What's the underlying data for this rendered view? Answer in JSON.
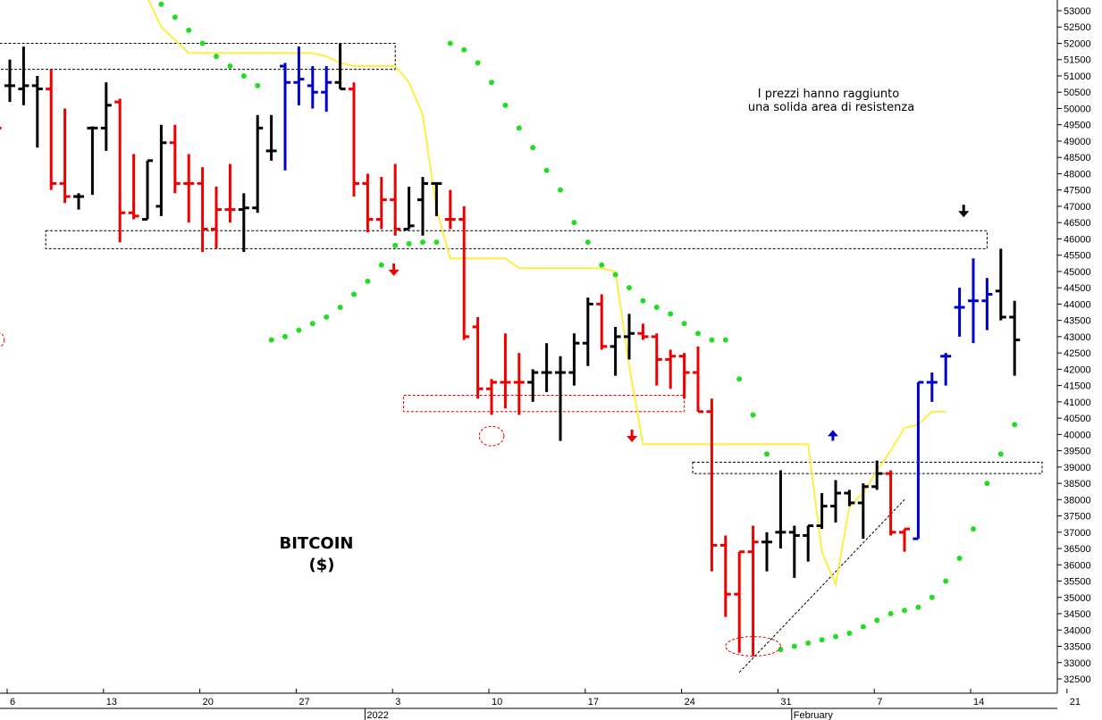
{
  "chart_data": {
    "type": "ohlc",
    "title": "BITCOIN",
    "subtitle": "($)",
    "annotation": "I prezzi hanno raggiunto una solida area di resistenza",
    "annotation_lines": [
      "I prezzi hanno raggiunto",
      "una solida area di resistenza"
    ],
    "ylim": [
      32000,
      53300
    ],
    "y_ticks": [
      32500,
      33000,
      33500,
      34000,
      34500,
      35000,
      35500,
      36000,
      36500,
      37000,
      37500,
      38000,
      38500,
      39000,
      39500,
      40000,
      40500,
      41000,
      41500,
      42000,
      42500,
      43000,
      43500,
      44000,
      44500,
      45000,
      45500,
      46000,
      46500,
      47000,
      47500,
      48000,
      48500,
      49000,
      49500,
      50000,
      50500,
      51000,
      51500,
      52000,
      52500,
      53000
    ],
    "x_day_ticks": [
      {
        "label": "6",
        "day": 0
      },
      {
        "label": "13",
        "day": 7
      },
      {
        "label": "20",
        "day": 14
      },
      {
        "label": "27",
        "day": 21
      },
      {
        "label": "3",
        "day": 28
      },
      {
        "label": "10",
        "day": 35
      },
      {
        "label": "17",
        "day": 42
      },
      {
        "label": "24",
        "day": 49
      },
      {
        "label": "31",
        "day": 56
      },
      {
        "label": "7",
        "day": 63
      },
      {
        "label": "14",
        "day": 70
      },
      {
        "label": "21",
        "day": 77
      }
    ],
    "month_labels": [
      {
        "label": "2022",
        "day": 26
      },
      {
        "label": "February",
        "day": 57
      }
    ],
    "grid": false,
    "colors": {
      "up_black": "#000000",
      "down_red": "#ee0000",
      "trend_blue": "#0000cc",
      "sar_green": "#22dd22",
      "stop_yellow": "#ffee44",
      "zone_black": "#000000",
      "zone_red": "#ee0000"
    },
    "bars": [
      {
        "day": -1,
        "o": 49400,
        "h": 51000,
        "l": 47300,
        "c": 49400,
        "color": "red"
      },
      {
        "day": 0,
        "o": 50700,
        "h": 51500,
        "l": 50200,
        "c": 50700,
        "color": "black"
      },
      {
        "day": 1,
        "o": 50600,
        "h": 51900,
        "l": 50100,
        "c": 50700,
        "color": "black"
      },
      {
        "day": 2,
        "o": 50700,
        "h": 51000,
        "l": 48800,
        "c": 50600,
        "color": "black"
      },
      {
        "day": 3,
        "o": 50600,
        "h": 51200,
        "l": 47500,
        "c": 47700,
        "color": "red"
      },
      {
        "day": 4,
        "o": 47700,
        "h": 50000,
        "l": 47100,
        "c": 47300,
        "color": "red"
      },
      {
        "day": 5,
        "o": 47300,
        "h": 47400,
        "l": 46900,
        "c": 47300,
        "color": "black"
      },
      {
        "day": 6,
        "o": 49400,
        "h": 49450,
        "l": 47350,
        "c": 49400,
        "color": "black"
      },
      {
        "day": 7,
        "o": 49400,
        "h": 50800,
        "l": 48700,
        "c": 50100,
        "color": "black"
      },
      {
        "day": 8,
        "o": 50200,
        "h": 50300,
        "l": 45900,
        "c": 46800,
        "color": "red"
      },
      {
        "day": 9,
        "o": 46800,
        "h": 48600,
        "l": 46600,
        "c": 46700,
        "color": "red"
      },
      {
        "day": 10,
        "o": 46600,
        "h": 48400,
        "l": 46600,
        "c": 48400,
        "color": "black"
      },
      {
        "day": 11,
        "o": 47000,
        "h": 49500,
        "l": 46700,
        "c": 48950,
        "color": "black"
      },
      {
        "day": 12,
        "o": 48950,
        "h": 49500,
        "l": 47400,
        "c": 47700,
        "color": "red"
      },
      {
        "day": 13,
        "o": 47700,
        "h": 48600,
        "l": 46500,
        "c": 47700,
        "color": "red"
      },
      {
        "day": 14,
        "o": 47700,
        "h": 48200,
        "l": 45600,
        "c": 46300,
        "color": "red"
      },
      {
        "day": 15,
        "o": 46300,
        "h": 47600,
        "l": 45700,
        "c": 46900,
        "color": "red"
      },
      {
        "day": 16,
        "o": 46900,
        "h": 48300,
        "l": 46500,
        "c": 46900,
        "color": "red"
      },
      {
        "day": 17,
        "o": 46900,
        "h": 47400,
        "l": 45600,
        "c": 46950,
        "color": "black"
      },
      {
        "day": 18,
        "o": 46950,
        "h": 49800,
        "l": 46800,
        "c": 49400,
        "color": "black"
      },
      {
        "day": 19,
        "o": 48700,
        "h": 49800,
        "l": 48400,
        "c": 48700,
        "color": "black"
      },
      {
        "day": 20,
        "o": 51300,
        "h": 51400,
        "l": 48100,
        "c": 50800,
        "color": "blue"
      },
      {
        "day": 21,
        "o": 50800,
        "h": 51900,
        "l": 50100,
        "c": 50900,
        "color": "blue"
      },
      {
        "day": 22,
        "o": 50700,
        "h": 51300,
        "l": 50000,
        "c": 50500,
        "color": "blue"
      },
      {
        "day": 23,
        "o": 50500,
        "h": 51300,
        "l": 49900,
        "c": 50800,
        "color": "blue"
      },
      {
        "day": 24,
        "o": 50800,
        "h": 52000,
        "l": 50600,
        "c": 50600,
        "color": "black"
      },
      {
        "day": 25,
        "o": 50600,
        "h": 50800,
        "l": 47300,
        "c": 47700,
        "color": "red"
      },
      {
        "day": 26,
        "o": 47700,
        "h": 48000,
        "l": 46200,
        "c": 46600,
        "color": "red"
      },
      {
        "day": 27,
        "o": 46600,
        "h": 47900,
        "l": 46300,
        "c": 47200,
        "color": "red"
      },
      {
        "day": 28,
        "o": 47200,
        "h": 48300,
        "l": 46100,
        "c": 46300,
        "color": "red"
      },
      {
        "day": 29,
        "o": 46300,
        "h": 47600,
        "l": 46300,
        "c": 46400,
        "color": "black"
      },
      {
        "day": 30,
        "o": 47200,
        "h": 47900,
        "l": 46100,
        "c": 47700,
        "color": "black"
      },
      {
        "day": 31,
        "o": 47700,
        "h": 47700,
        "l": 46700,
        "c": 47700,
        "color": "black"
      },
      {
        "day": 32,
        "o": 46600,
        "h": 47500,
        "l": 46300,
        "c": 46600,
        "color": "red"
      },
      {
        "day": 33,
        "o": 46600,
        "h": 47000,
        "l": 42900,
        "c": 43000,
        "color": "red"
      },
      {
        "day": 34,
        "o": 43300,
        "h": 43600,
        "l": 41100,
        "c": 41400,
        "color": "red"
      },
      {
        "day": 35,
        "o": 41400,
        "h": 41700,
        "l": 40600,
        "c": 41600,
        "color": "red"
      },
      {
        "day": 36,
        "o": 41600,
        "h": 43100,
        "l": 40800,
        "c": 41600,
        "color": "red"
      },
      {
        "day": 37,
        "o": 41600,
        "h": 42500,
        "l": 40600,
        "c": 41600,
        "color": "red"
      },
      {
        "day": 38,
        "o": 41600,
        "h": 42000,
        "l": 41000,
        "c": 41900,
        "color": "black"
      },
      {
        "day": 39,
        "o": 41900,
        "h": 42800,
        "l": 41300,
        "c": 41900,
        "color": "black"
      },
      {
        "day": 40,
        "o": 41900,
        "h": 42400,
        "l": 39800,
        "c": 41900,
        "color": "black"
      },
      {
        "day": 41,
        "o": 41900,
        "h": 43100,
        "l": 41500,
        "c": 42800,
        "color": "black"
      },
      {
        "day": 42,
        "o": 42800,
        "h": 44200,
        "l": 42100,
        "c": 44000,
        "color": "black"
      },
      {
        "day": 43,
        "o": 44000,
        "h": 44300,
        "l": 42600,
        "c": 42700,
        "color": "red"
      },
      {
        "day": 44,
        "o": 42700,
        "h": 43300,
        "l": 41800,
        "c": 43000,
        "color": "black"
      },
      {
        "day": 45,
        "o": 43000,
        "h": 43700,
        "l": 42300,
        "c": 43100,
        "color": "black"
      },
      {
        "day": 46,
        "o": 43100,
        "h": 43400,
        "l": 42900,
        "c": 43000,
        "color": "red"
      },
      {
        "day": 47,
        "o": 43000,
        "h": 43100,
        "l": 41500,
        "c": 42300,
        "color": "red"
      },
      {
        "day": 48,
        "o": 42300,
        "h": 42600,
        "l": 41400,
        "c": 42400,
        "color": "red"
      },
      {
        "day": 49,
        "o": 42400,
        "h": 42500,
        "l": 41100,
        "c": 41900,
        "color": "red"
      },
      {
        "day": 50,
        "o": 41900,
        "h": 42700,
        "l": 40700,
        "c": 40700,
        "color": "red"
      },
      {
        "day": 51,
        "o": 40700,
        "h": 41100,
        "l": 35800,
        "c": 36600,
        "color": "red"
      },
      {
        "day": 52,
        "o": 36600,
        "h": 36900,
        "l": 34400,
        "c": 35100,
        "color": "red"
      },
      {
        "day": 53,
        "o": 35100,
        "h": 36400,
        "l": 33300,
        "c": 36400,
        "color": "red"
      },
      {
        "day": 54,
        "o": 36400,
        "h": 37200,
        "l": 33200,
        "c": 36700,
        "color": "red"
      },
      {
        "day": 55,
        "o": 36700,
        "h": 37000,
        "l": 35800,
        "c": 36700,
        "color": "black"
      },
      {
        "day": 56,
        "o": 37000,
        "h": 38900,
        "l": 36500,
        "c": 37000,
        "color": "black"
      },
      {
        "day": 57,
        "o": 37000,
        "h": 37200,
        "l": 35600,
        "c": 36900,
        "color": "black"
      },
      {
        "day": 58,
        "o": 36900,
        "h": 37200,
        "l": 36100,
        "c": 37200,
        "color": "black"
      },
      {
        "day": 59,
        "o": 37200,
        "h": 38200,
        "l": 37100,
        "c": 37800,
        "color": "black"
      },
      {
        "day": 60,
        "o": 37800,
        "h": 38600,
        "l": 37300,
        "c": 38200,
        "color": "black"
      },
      {
        "day": 61,
        "o": 38200,
        "h": 38300,
        "l": 37800,
        "c": 37900,
        "color": "black"
      },
      {
        "day": 62,
        "o": 37900,
        "h": 38500,
        "l": 36800,
        "c": 38400,
        "color": "black"
      },
      {
        "day": 63,
        "o": 38400,
        "h": 39200,
        "l": 38300,
        "c": 38800,
        "color": "black"
      },
      {
        "day": 64,
        "o": 38800,
        "h": 38900,
        "l": 36900,
        "c": 37000,
        "color": "red"
      },
      {
        "day": 65,
        "o": 37000,
        "h": 37100,
        "l": 36400,
        "c": 37100,
        "color": "red"
      },
      {
        "day": 66,
        "o": 36800,
        "h": 41600,
        "l": 36800,
        "c": 41600,
        "color": "blue"
      },
      {
        "day": 67,
        "o": 41600,
        "h": 41900,
        "l": 41000,
        "c": 41600,
        "color": "blue"
      },
      {
        "day": 68,
        "o": 42400,
        "h": 42500,
        "l": 41500,
        "c": 42400,
        "color": "blue"
      },
      {
        "day": 69,
        "o": 43900,
        "h": 44500,
        "l": 43000,
        "c": 43900,
        "color": "blue"
      },
      {
        "day": 70,
        "o": 44100,
        "h": 45400,
        "l": 42800,
        "c": 44100,
        "color": "blue"
      },
      {
        "day": 71,
        "o": 44100,
        "h": 44800,
        "l": 43200,
        "c": 44300,
        "color": "blue"
      },
      {
        "day": 72,
        "o": 44400,
        "h": 45700,
        "l": 43500,
        "c": 43600,
        "color": "black"
      },
      {
        "day": 73,
        "o": 43600,
        "h": 44100,
        "l": 41800,
        "c": 42900,
        "color": "black"
      }
    ],
    "sar_points": [
      {
        "day": 11,
        "v": 53200
      },
      {
        "day": 12,
        "v": 52800
      },
      {
        "day": 13,
        "v": 52400
      },
      {
        "day": 14,
        "v": 52000
      },
      {
        "day": 15,
        "v": 51600
      },
      {
        "day": 16,
        "v": 51300
      },
      {
        "day": 17,
        "v": 51000
      },
      {
        "day": 18,
        "v": 50700
      },
      {
        "day": 19,
        "v": 42900
      },
      {
        "day": 20,
        "v": 43000
      },
      {
        "day": 21,
        "v": 43200
      },
      {
        "day": 22,
        "v": 43400
      },
      {
        "day": 23,
        "v": 43600
      },
      {
        "day": 24,
        "v": 43900
      },
      {
        "day": 25,
        "v": 44300
      },
      {
        "day": 26,
        "v": 44700
      },
      {
        "day": 27,
        "v": 45200
      },
      {
        "day": 28,
        "v": 45800
      },
      {
        "day": 29,
        "v": 45850
      },
      {
        "day": 30,
        "v": 45900
      },
      {
        "day": 31,
        "v": 45900
      },
      {
        "day": 32,
        "v": 52000
      },
      {
        "day": 33,
        "v": 51800
      },
      {
        "day": 34,
        "v": 51400
      },
      {
        "day": 35,
        "v": 50800
      },
      {
        "day": 36,
        "v": 50100
      },
      {
        "day": 37,
        "v": 49400
      },
      {
        "day": 38,
        "v": 48800
      },
      {
        "day": 39,
        "v": 48100
      },
      {
        "day": 40,
        "v": 47500
      },
      {
        "day": 41,
        "v": 46500
      },
      {
        "day": 42,
        "v": 45900
      },
      {
        "day": 43,
        "v": 45200
      },
      {
        "day": 44,
        "v": 44900
      },
      {
        "day": 45,
        "v": 44500
      },
      {
        "day": 46,
        "v": 44100
      },
      {
        "day": 47,
        "v": 43900
      },
      {
        "day": 48,
        "v": 43700
      },
      {
        "day": 49,
        "v": 43400
      },
      {
        "day": 50,
        "v": 43100
      },
      {
        "day": 51,
        "v": 42900
      },
      {
        "day": 52,
        "v": 42900
      },
      {
        "day": 53,
        "v": 41700
      },
      {
        "day": 54,
        "v": 40600
      },
      {
        "day": 55,
        "v": 39400
      },
      {
        "day": 56,
        "v": 33400
      },
      {
        "day": 57,
        "v": 33500
      },
      {
        "day": 58,
        "v": 33600
      },
      {
        "day": 59,
        "v": 33700
      },
      {
        "day": 60,
        "v": 33800
      },
      {
        "day": 61,
        "v": 33900
      },
      {
        "day": 62,
        "v": 34100
      },
      {
        "day": 63,
        "v": 34300
      },
      {
        "day": 64,
        "v": 34500
      },
      {
        "day": 65,
        "v": 34600
      },
      {
        "day": 66,
        "v": 34700
      },
      {
        "day": 67,
        "v": 35000
      },
      {
        "day": 68,
        "v": 35500
      },
      {
        "day": 69,
        "v": 36200
      },
      {
        "day": 70,
        "v": 37100
      },
      {
        "day": 71,
        "v": 38500
      },
      {
        "day": 72,
        "v": 39400
      },
      {
        "day": 73,
        "v": 40300
      }
    ],
    "stop_line": [
      {
        "day": 10,
        "v": 53400
      },
      {
        "day": 11,
        "v": 52500
      },
      {
        "day": 12,
        "v": 52100
      },
      {
        "day": 13,
        "v": 51700
      },
      {
        "day": 15,
        "v": 51700
      },
      {
        "day": 19,
        "v": 51700
      },
      {
        "day": 22,
        "v": 51700
      },
      {
        "day": 23,
        "v": 51600
      },
      {
        "day": 24,
        "v": 51400
      },
      {
        "day": 25,
        "v": 51300
      },
      {
        "day": 27,
        "v": 51300
      },
      {
        "day": 28,
        "v": 51300
      },
      {
        "day": 29,
        "v": 50800
      },
      {
        "day": 30,
        "v": 49800
      },
      {
        "day": 31,
        "v": 46900
      },
      {
        "day": 32,
        "v": 45400
      },
      {
        "day": 34,
        "v": 45400
      },
      {
        "day": 36,
        "v": 45400
      },
      {
        "day": 37,
        "v": 45100
      },
      {
        "day": 41,
        "v": 45100
      },
      {
        "day": 43,
        "v": 45100
      },
      {
        "day": 44,
        "v": 45000
      },
      {
        "day": 45,
        "v": 42100
      },
      {
        "day": 46,
        "v": 39700
      },
      {
        "day": 47,
        "v": 39700
      },
      {
        "day": 55,
        "v": 39700
      },
      {
        "day": 58,
        "v": 39700
      },
      {
        "day": 59,
        "v": 36400
      },
      {
        "day": 60,
        "v": 35400
      },
      {
        "day": 61,
        "v": 37800
      },
      {
        "day": 62,
        "v": 38200
      },
      {
        "day": 63,
        "v": 38900
      },
      {
        "day": 64,
        "v": 39500
      },
      {
        "day": 65,
        "v": 40200
      },
      {
        "day": 66,
        "v": 40300
      },
      {
        "day": 67,
        "v": 40700
      },
      {
        "day": 68,
        "v": 40700
      }
    ],
    "zones": [
      {
        "d1": -1,
        "d2": 28,
        "v1": 51200,
        "v2": 52000,
        "color": "black"
      },
      {
        "d1": 3,
        "d2": 71,
        "v1": 45700,
        "v2": 46250,
        "color": "black"
      },
      {
        "d1": 29,
        "d2": 49,
        "v1": 40700,
        "v2": 41200,
        "color": "red"
      },
      {
        "d1": 50,
        "d2": 75,
        "v1": 38800,
        "v2": 39150,
        "color": "black"
      }
    ],
    "ellipses": [
      {
        "day": -1,
        "v": 42900,
        "rx_days": 0.6,
        "ry_v": 250,
        "color": "red"
      },
      {
        "day": 35,
        "v": 39950,
        "rx_days": 0.9,
        "ry_v": 300,
        "color": "red"
      },
      {
        "day": 54,
        "v": 33500,
        "rx_days": 2.0,
        "ry_v": 300,
        "color": "red"
      }
    ],
    "trendline": {
      "d1": 53,
      "v1": 32700,
      "d2": 65,
      "v2": 38000
    },
    "arrows": [
      {
        "day": 27.9,
        "v": 45000,
        "dir": "down",
        "color": "red"
      },
      {
        "day": 45.2,
        "v": 39900,
        "dir": "down",
        "color": "red"
      },
      {
        "day": 59.8,
        "v": 40000,
        "dir": "up",
        "color": "blue"
      },
      {
        "day": 69.3,
        "v": 46800,
        "dir": "down",
        "color": "black"
      }
    ]
  }
}
